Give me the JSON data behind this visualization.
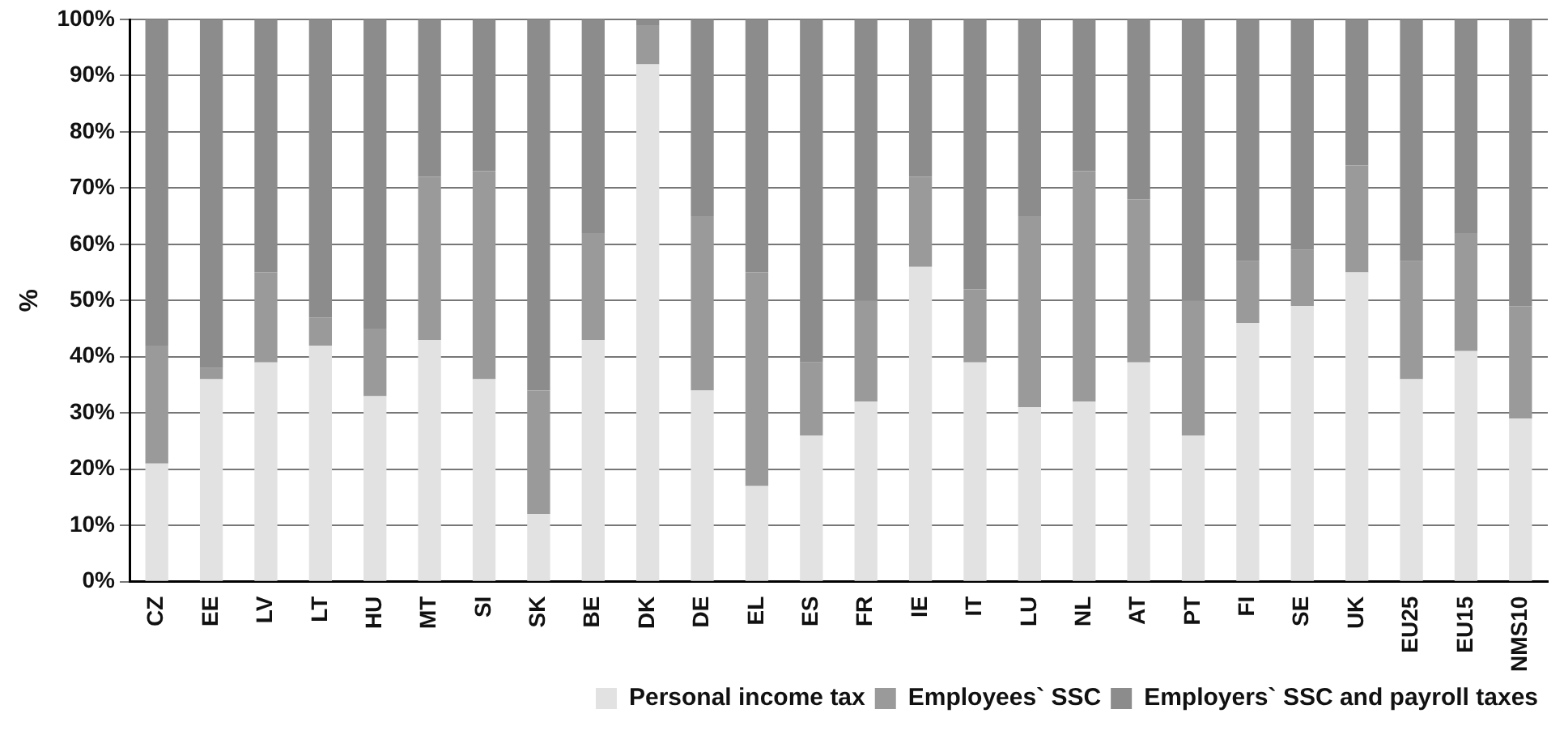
{
  "chart_data": {
    "type": "bar",
    "stacked": true,
    "ylabel": "%",
    "categories": [
      "CZ",
      "EE",
      "LV",
      "LT",
      "HU",
      "MT",
      "SI",
      "SK",
      "BE",
      "DK",
      "DE",
      "EL",
      "ES",
      "FR",
      "IE",
      "IT",
      "LU",
      "NL",
      "AT",
      "PT",
      "FI",
      "SE",
      "UK",
      "EU25",
      "EU15",
      "NMS10"
    ],
    "series": [
      {
        "name": "Personal income tax",
        "color": "#e2e2e2",
        "values": [
          21,
          36,
          39,
          42,
          33,
          43,
          36,
          12,
          43,
          92,
          34,
          17,
          26,
          32,
          56,
          39,
          31,
          32,
          39,
          26,
          46,
          49,
          55,
          36,
          41,
          29
        ]
      },
      {
        "name": "Employees` SSC",
        "color": "#9a9a9a",
        "values": [
          21,
          2,
          16,
          5,
          12,
          29,
          37,
          22,
          19,
          7,
          31,
          38,
          13,
          18,
          16,
          13,
          34,
          41,
          29,
          24,
          11,
          10,
          19,
          21,
          21,
          20
        ]
      },
      {
        "name": "Employers` SSC and payroll taxes",
        "color": "#8c8c8c",
        "values": [
          58,
          62,
          45,
          53,
          55,
          28,
          27,
          66,
          38,
          1,
          35,
          45,
          61,
          50,
          28,
          48,
          35,
          27,
          32,
          50,
          43,
          41,
          26,
          43,
          38,
          51
        ]
      }
    ],
    "ylim": [
      0,
      100
    ],
    "yticks": [
      {
        "value": 0,
        "label": "0%"
      },
      {
        "value": 10,
        "label": "10%"
      },
      {
        "value": 20,
        "label": "20%"
      },
      {
        "value": 30,
        "label": "30%"
      },
      {
        "value": 40,
        "label": "40%"
      },
      {
        "value": 50,
        "label": "50%"
      },
      {
        "value": 60,
        "label": "60%"
      },
      {
        "value": 70,
        "label": "70%"
      },
      {
        "value": 80,
        "label": "80%"
      },
      {
        "value": 90,
        "label": "90%"
      },
      {
        "value": 100,
        "label": "100%"
      }
    ],
    "grid": "y",
    "legend": "bottom"
  }
}
